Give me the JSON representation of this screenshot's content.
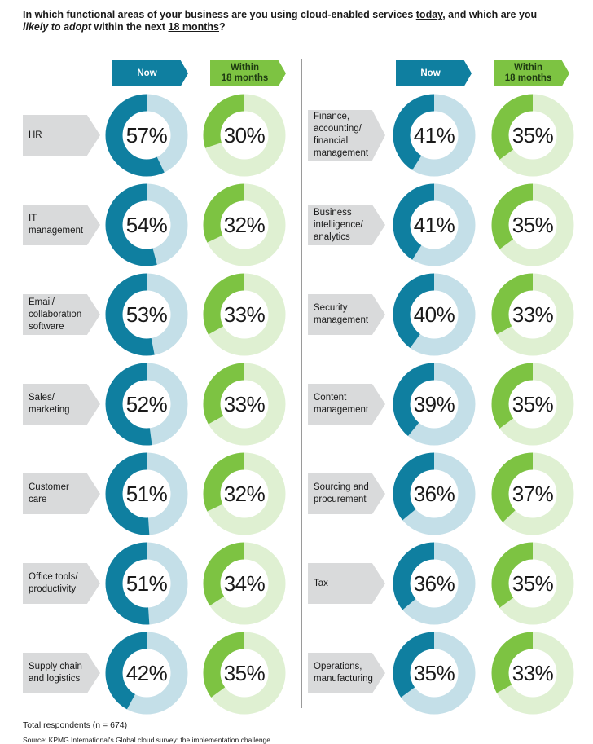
{
  "title": {
    "p1": "In which functional areas of your business are you using cloud-enabled services ",
    "today": "today",
    "p2": ", and which are you ",
    "likely": "likely to adopt",
    "p3": " within the next ",
    "months": "18 months",
    "p4": "?"
  },
  "headers": {
    "now": "Now",
    "within_line1": "Within",
    "within_line2": "18 months"
  },
  "colors": {
    "now_fill": "#0f7fa0",
    "now_track": "#c4dfe8",
    "within_fill": "#7dc342",
    "within_track": "#dff0d2",
    "label_bg": "#d9dadb"
  },
  "chart_data": {
    "type": "donut",
    "series_names": [
      "Now",
      "Within 18 months"
    ],
    "unit": "%",
    "left_column": [
      {
        "label": "HR",
        "now": 57,
        "within": 30
      },
      {
        "label": "IT\nmanagement",
        "now": 54,
        "within": 32
      },
      {
        "label": "Email/\ncollaboration\nsoftware",
        "now": 53,
        "within": 33
      },
      {
        "label": "Sales/\nmarketing",
        "now": 52,
        "within": 33
      },
      {
        "label": "Customer\ncare",
        "now": 51,
        "within": 32
      },
      {
        "label": "Office tools/\nproductivity",
        "now": 51,
        "within": 34
      },
      {
        "label": "Supply chain\nand logistics",
        "now": 42,
        "within": 35
      }
    ],
    "right_column": [
      {
        "label": "Finance,\naccounting/\nfinancial\nmanagement",
        "now": 41,
        "within": 35
      },
      {
        "label": "Business\nintelligence/\nanalytics",
        "now": 41,
        "within": 35
      },
      {
        "label": "Security\nmanagement",
        "now": 40,
        "within": 33
      },
      {
        "label": "Content\nmanagement",
        "now": 39,
        "within": 35
      },
      {
        "label": "Sourcing and\nprocurement",
        "now": 36,
        "within": 37
      },
      {
        "label": "Tax",
        "now": 36,
        "within": 35
      },
      {
        "label": "Operations,\nmanufacturing",
        "now": 35,
        "within": 33
      }
    ]
  },
  "footer": {
    "respondents": "Total respondents (n = 674)",
    "source": "Source: KPMG International's Global cloud survey: the implementation challenge"
  }
}
